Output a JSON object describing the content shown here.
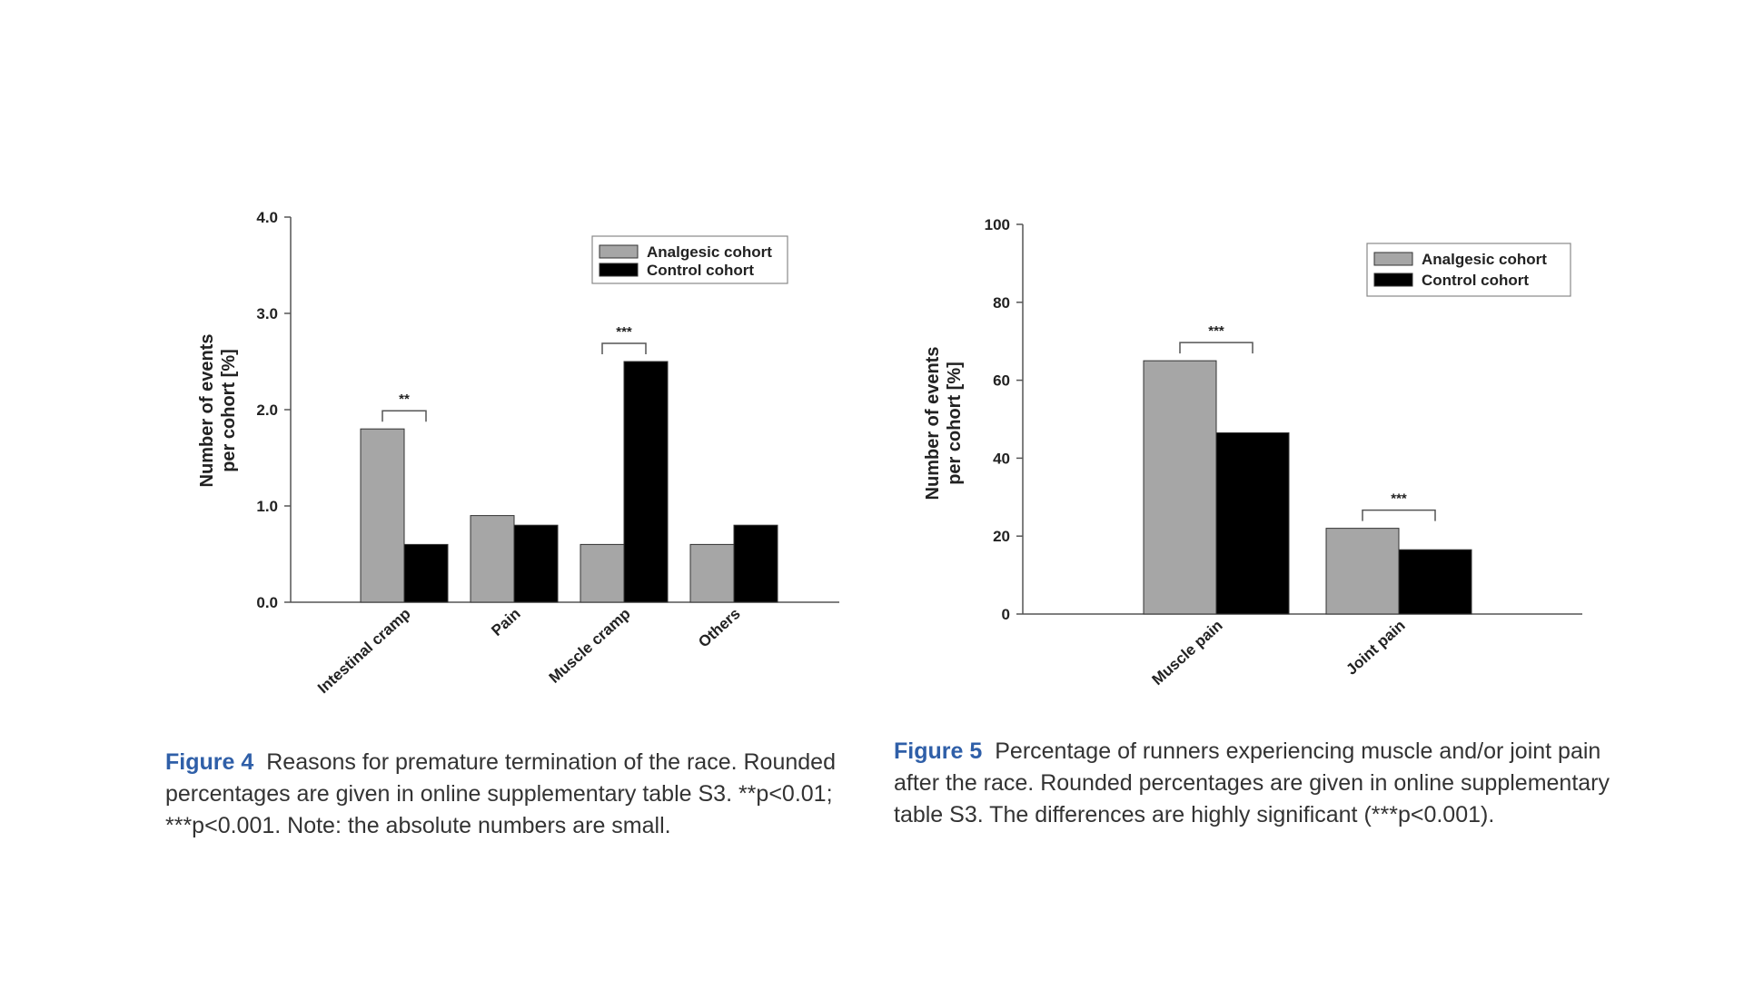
{
  "chart_data": [
    {
      "type": "bar",
      "ylabel": [
        "Number of events",
        "per cohort [%]"
      ],
      "categories": [
        "Intestinal cramp",
        "Pain",
        "Muscle cramp",
        "Others"
      ],
      "series": [
        {
          "name": "Analgesic cohort",
          "color": "#a6a6a6",
          "values": [
            1.8,
            0.9,
            0.6,
            0.6
          ]
        },
        {
          "name": "Control cohort",
          "color": "#000000",
          "values": [
            0.6,
            0.8,
            2.5,
            0.8
          ]
        }
      ],
      "annotations": [
        "**",
        null,
        "***",
        null
      ],
      "ylim": [
        0,
        4
      ],
      "yticks": [
        {
          "value": 0,
          "label": "0.0"
        },
        {
          "value": 1,
          "label": "1.0"
        },
        {
          "value": 2,
          "label": "2.0"
        },
        {
          "value": 3,
          "label": "3.0"
        },
        {
          "value": 4,
          "label": "4.0"
        }
      ],
      "legend": "upper right",
      "figure_label": "Figure 4",
      "caption": "Reasons for premature termination of the race. Rounded percentages are given in online supplementary table S3. **p<0.01; ***p<0.001. Note: the absolute numbers are small."
    },
    {
      "type": "bar",
      "ylabel": [
        "Number of events",
        "per cohort [%]"
      ],
      "categories": [
        "Muscle pain",
        "Joint pain"
      ],
      "series": [
        {
          "name": "Analgesic cohort",
          "color": "#a6a6a6",
          "values": [
            65,
            22
          ]
        },
        {
          "name": "Control cohort",
          "color": "#000000",
          "values": [
            46.5,
            16.5
          ]
        }
      ],
      "annotations": [
        "***",
        "***"
      ],
      "ylim": [
        0,
        100
      ],
      "yticks": [
        0,
        20,
        40,
        60,
        80,
        100
      ],
      "legend": "upper right",
      "figure_label": "Figure 5",
      "caption": "Percentage of runners experiencing muscle and/or joint pain after the race. Rounded percentages are given in online supplementary table S3. The differences are highly significant (***p<0.001)."
    }
  ]
}
